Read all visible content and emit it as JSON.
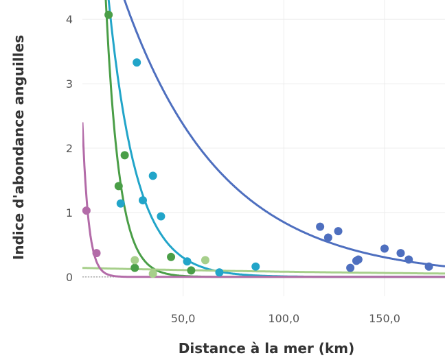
{
  "chart_data": {
    "type": "scatter",
    "xlabel": "Distance à la mer (km)",
    "ylabel": "Indice d'abondance anguilles",
    "xlim": [
      0,
      180
    ],
    "ylim": [
      -0.3,
      4.3
    ],
    "x_ticks": [
      50,
      100,
      150
    ],
    "x_tick_labels": [
      "50,0",
      "100,0",
      "150,0"
    ],
    "y_ticks": [
      0,
      1,
      2,
      3,
      4
    ],
    "y_tick_labels": [
      "0",
      "1",
      "2",
      "3",
      "4"
    ],
    "grid": true,
    "legend": "none",
    "series": [
      {
        "color": "#4e6fbf",
        "points": [
          [
            118,
            0.78
          ],
          [
            122,
            0.61
          ],
          [
            127,
            0.71
          ],
          [
            133,
            0.14
          ],
          [
            136,
            0.25
          ],
          [
            137,
            0.27
          ],
          [
            150,
            0.44
          ],
          [
            158,
            0.37
          ],
          [
            162,
            0.27
          ],
          [
            172,
            0.16
          ]
        ],
        "fit": {
          "a": 6.6,
          "b": 0.0205
        }
      },
      {
        "color": "#22a5c9",
        "points": [
          [
            27,
            3.33
          ],
          [
            19,
            1.14
          ],
          [
            30,
            1.19
          ],
          [
            35,
            1.57
          ],
          [
            39,
            0.94
          ],
          [
            52,
            0.24
          ],
          [
            68,
            0.07
          ],
          [
            86,
            0.16
          ]
        ],
        "fit": {
          "a": 11.0,
          "b": 0.072
        }
      },
      {
        "color": "#4a9e47",
        "points": [
          [
            13,
            4.07
          ],
          [
            21,
            1.89
          ],
          [
            18,
            1.41
          ],
          [
            26,
            0.14
          ],
          [
            44,
            0.31
          ],
          [
            54,
            0.1
          ]
        ],
        "fit": {
          "a": 24.0,
          "b": 0.148
        }
      },
      {
        "color": "#a7cf8b",
        "points": [
          [
            26,
            0.26
          ],
          [
            35,
            0.05
          ],
          [
            61,
            0.26
          ]
        ],
        "fit": {
          "a": 0.14,
          "b": 0.0055
        }
      },
      {
        "color": "#b36ba8",
        "points": [
          [
            2,
            1.03
          ],
          [
            7,
            0.37
          ]
        ],
        "fit": {
          "a": 2.4,
          "b": 0.33
        }
      }
    ]
  }
}
